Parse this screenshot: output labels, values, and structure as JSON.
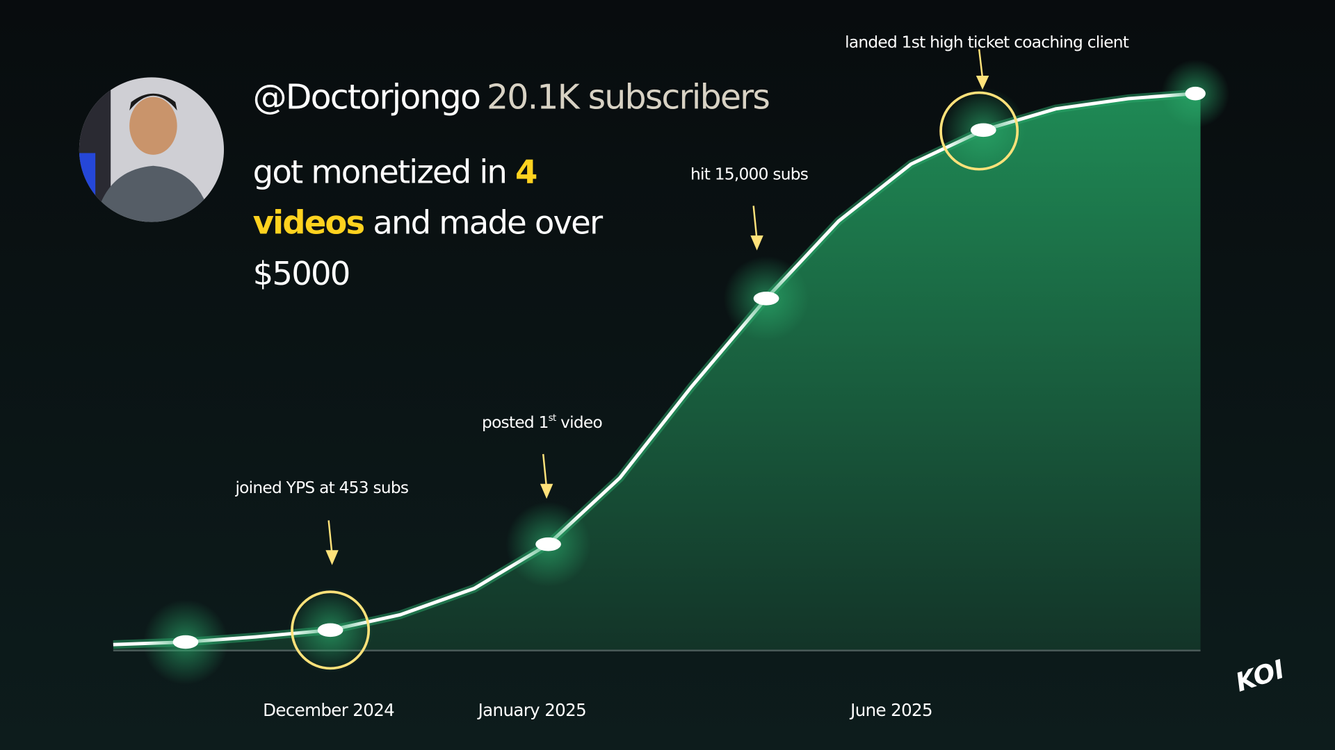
{
  "header": {
    "handle": "@Doctorjongo",
    "subscribers": "20.1K subscribers"
  },
  "headline": {
    "line1": "got monetized in ",
    "highlight1": "4",
    "highlight2": "videos",
    "line2": " and made over",
    "line3": "$5000"
  },
  "milestones": [
    {
      "label": "joined YPS at 453 subs"
    },
    {
      "label": "posted 1",
      "superscript": "st",
      "label_end": " video"
    },
    {
      "label": "hit 15,000 subs"
    },
    {
      "label": "landed 1st high ticket coaching client"
    }
  ],
  "timeline": [
    "December 2024",
    "January 2025",
    "June 2025"
  ],
  "logo": "KOI"
}
